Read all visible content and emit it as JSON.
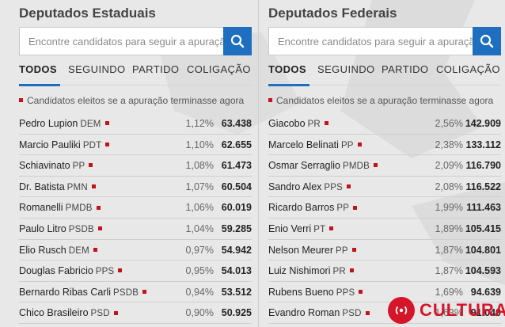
{
  "estaduais": {
    "title": "Deputados Estaduais",
    "search_placeholder": "Encontre candidatos para seguir a apuração",
    "tabs": [
      "TODOS",
      "SEGUINDO",
      "PARTIDO",
      "COLIGAÇÃO"
    ],
    "active_tab": 0,
    "legend": "Candidatos eleitos se a apuração terminasse agora",
    "candidates": [
      {
        "name": "Pedro Lupion",
        "party": "DEM",
        "pct": "1,12%",
        "votes": "63.438"
      },
      {
        "name": "Marcio Pauliki",
        "party": "PDT",
        "pct": "1,10%",
        "votes": "62.655"
      },
      {
        "name": "Schiavinato",
        "party": "PP",
        "pct": "1,08%",
        "votes": "61.473"
      },
      {
        "name": "Dr. Batista",
        "party": "PMN",
        "pct": "1,07%",
        "votes": "60.504"
      },
      {
        "name": "Romanelli",
        "party": "PMDB",
        "pct": "1,06%",
        "votes": "60.019"
      },
      {
        "name": "Paulo Litro",
        "party": "PSDB",
        "pct": "1,04%",
        "votes": "59.285"
      },
      {
        "name": "Elio Rusch",
        "party": "DEM",
        "pct": "0,97%",
        "votes": "54.942"
      },
      {
        "name": "Douglas Fabricio",
        "party": "PPS",
        "pct": "0,95%",
        "votes": "54.013"
      },
      {
        "name": "Bernardo Ribas Carli",
        "party": "PSDB",
        "pct": "0,94%",
        "votes": "53.512"
      },
      {
        "name": "Chico Brasileiro",
        "party": "PSD",
        "pct": "0,90%",
        "votes": "50.925"
      }
    ]
  },
  "federais": {
    "title": "Deputados Federais",
    "search_placeholder": "Encontre candidatos para seguir a apuração",
    "tabs": [
      "TODOS",
      "SEGUINDO",
      "PARTIDO",
      "COLIGAÇÃO"
    ],
    "active_tab": 0,
    "legend": "Candidatos eleitos se a apuração terminasse agora",
    "candidates": [
      {
        "name": "Giacobo",
        "party": "PR",
        "pct": "2,56%",
        "votes": "142.909"
      },
      {
        "name": "Marcelo Belinati",
        "party": "PP",
        "pct": "2,38%",
        "votes": "133.112"
      },
      {
        "name": "Osmar Serraglio",
        "party": "PMDB",
        "pct": "2,09%",
        "votes": "116.790"
      },
      {
        "name": "Sandro Alex",
        "party": "PPS",
        "pct": "2,08%",
        "votes": "116.522"
      },
      {
        "name": "Ricardo Barros",
        "party": "PP",
        "pct": "1,99%",
        "votes": "111.463"
      },
      {
        "name": "Enio Verri",
        "party": "PT",
        "pct": "1,89%",
        "votes": "105.415"
      },
      {
        "name": "Nelson Meurer",
        "party": "PP",
        "pct": "1,87%",
        "votes": "104.801"
      },
      {
        "name": "Luiz Nishimori",
        "party": "PR",
        "pct": "1,87%",
        "votes": "104.593"
      },
      {
        "name": "Rubens Bueno",
        "party": "PPS",
        "pct": "1,69%",
        "votes": "94.639"
      },
      {
        "name": "Evandro Roman",
        "party": "PSD",
        "pct": "1,63%",
        "votes": "91.040"
      }
    ]
  },
  "colors": {
    "accent": "#1e6fc0",
    "marker": "#c0141c",
    "brand": "#d5162a"
  },
  "icons": {
    "search": "search-icon",
    "logo": "radio-signal-icon"
  },
  "logo": {
    "text": "CULTURA"
  }
}
